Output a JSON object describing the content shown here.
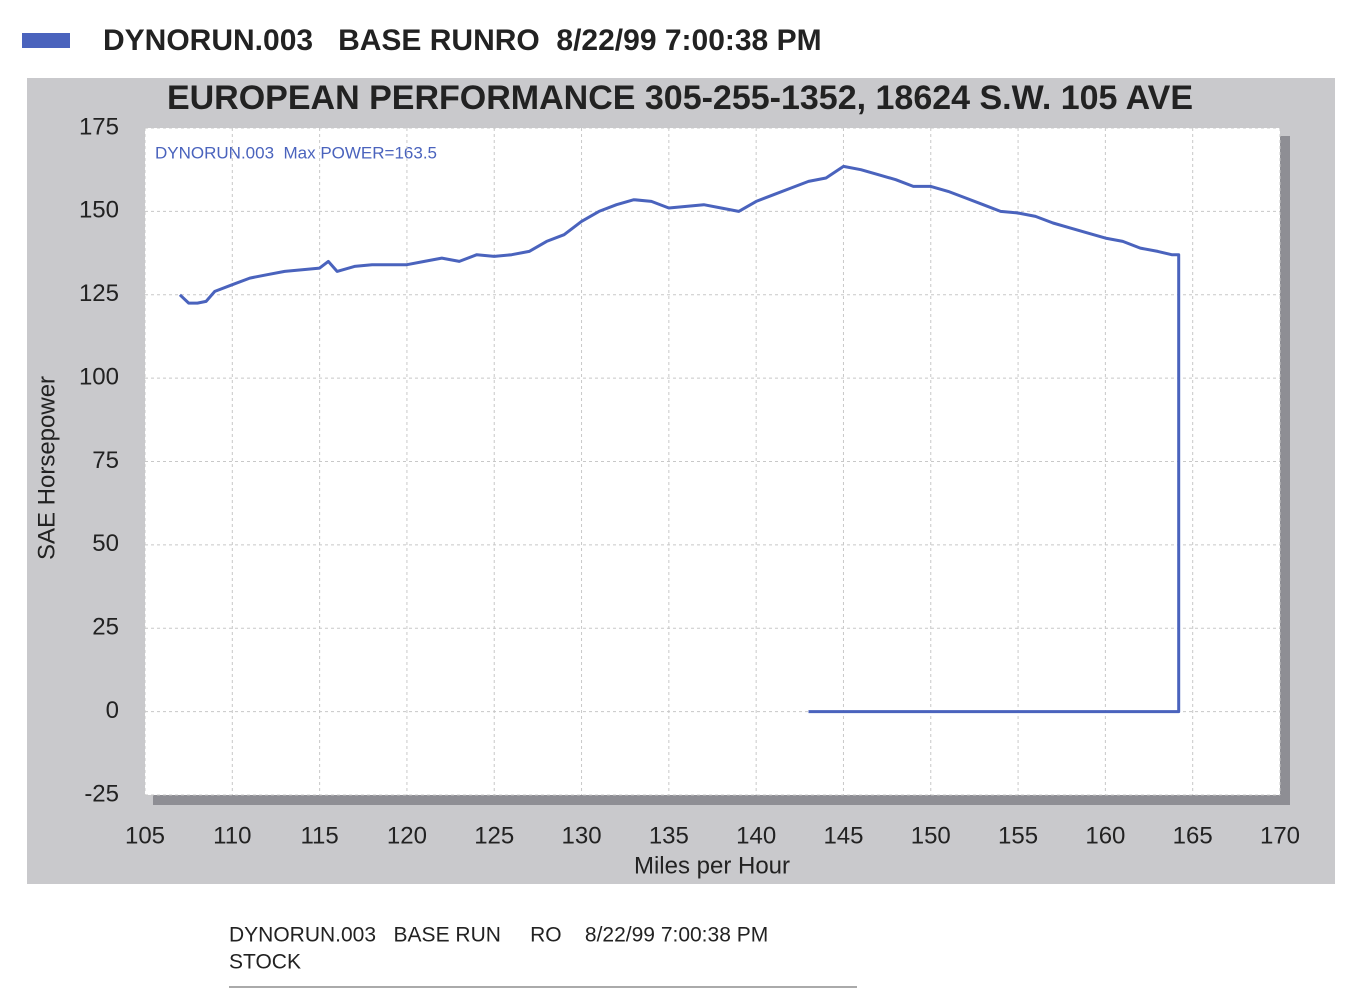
{
  "chart_data": {
    "type": "line",
    "title": "EUROPEAN PERFORMANCE 305-255-1352, 18624 S.W. 105 AVE",
    "annotation": "DYNORUN.003  Max POWER=163.5",
    "xlabel": "Miles per Hour",
    "ylabel": "SAE Horsepower",
    "x": [
      107,
      107.5,
      108,
      108.5,
      109,
      110,
      111,
      112,
      113,
      114,
      115,
      115.5,
      116,
      117,
      118,
      119,
      120,
      121,
      122,
      123,
      124,
      125,
      126,
      127,
      128,
      129,
      130,
      131,
      132,
      133,
      134,
      135,
      136,
      137,
      138,
      139,
      140,
      141,
      142,
      143,
      144,
      145,
      146,
      147,
      148,
      149,
      150,
      151,
      152,
      153,
      154,
      155,
      156,
      157,
      158,
      159,
      160,
      161,
      162,
      163,
      163.8,
      164.2,
      164.2,
      143
    ],
    "series": [
      {
        "name": "DYNORUN.003   BASE RUNRO  8/22/99 7:00:38 PM",
        "color": "#4a63bd",
        "values": [
          125,
          122.5,
          122.5,
          123,
          126,
          128,
          130,
          131,
          132,
          132.5,
          133,
          135,
          132,
          133.5,
          134,
          134,
          134,
          135,
          136,
          135,
          137,
          136.5,
          137,
          138,
          141,
          143,
          147,
          150,
          152,
          153.5,
          153,
          151,
          151.5,
          152,
          151,
          150,
          153,
          155,
          157,
          159,
          160,
          163.5,
          162.5,
          161,
          159.5,
          157.5,
          157.5,
          156,
          154,
          152,
          150,
          149.5,
          148.5,
          146.5,
          145,
          143.5,
          142,
          141,
          139,
          138,
          137,
          137,
          0,
          0
        ]
      }
    ],
    "xlim": [
      105,
      170
    ],
    "xticks": [
      105,
      110,
      115,
      120,
      125,
      130,
      135,
      140,
      145,
      150,
      155,
      160,
      165,
      170
    ],
    "ylim": [
      -25,
      175
    ],
    "yticks": [
      -25,
      0,
      25,
      50,
      75,
      100,
      125,
      150,
      175
    ],
    "grid": true,
    "footer": [
      "DYNORUN.003   BASE RUN     RO    8/22/99 7:00:38 PM",
      "STOCK"
    ]
  }
}
